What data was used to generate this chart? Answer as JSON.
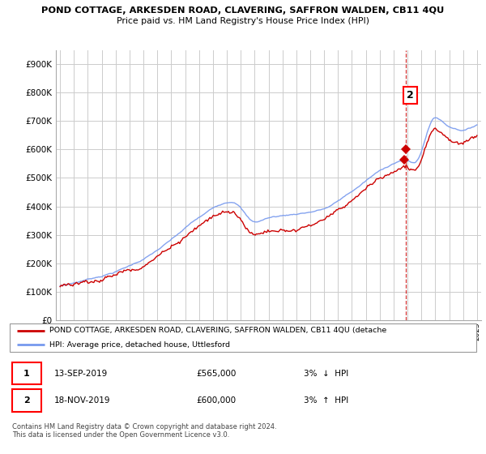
{
  "title_line1": "POND COTTAGE, ARKESDEN ROAD, CLAVERING, SAFFRON WALDEN, CB11 4QU",
  "title_line2": "Price paid vs. HM Land Registry's House Price Index (HPI)",
  "ylim": [
    0,
    950000
  ],
  "yticks": [
    0,
    100000,
    200000,
    300000,
    400000,
    500000,
    600000,
    700000,
    800000,
    900000
  ],
  "ytick_labels": [
    "£0",
    "£100K",
    "£200K",
    "£300K",
    "£400K",
    "£500K",
    "£600K",
    "£700K",
    "£800K",
    "£900K"
  ],
  "hpi_color": "#7799ee",
  "price_color": "#cc0000",
  "sale1_price": 565000,
  "sale2_price": 600000,
  "legend_line1": "POND COTTAGE, ARKESDEN ROAD, CLAVERING, SAFFRON WALDEN, CB11 4QU (detache",
  "legend_line2": "HPI: Average price, detached house, Uttlesford",
  "footer": "Contains HM Land Registry data © Crown copyright and database right 2024.\nThis data is licensed under the Open Government Licence v3.0.",
  "grid_color": "#cccccc",
  "anno_color": "#cc0000"
}
